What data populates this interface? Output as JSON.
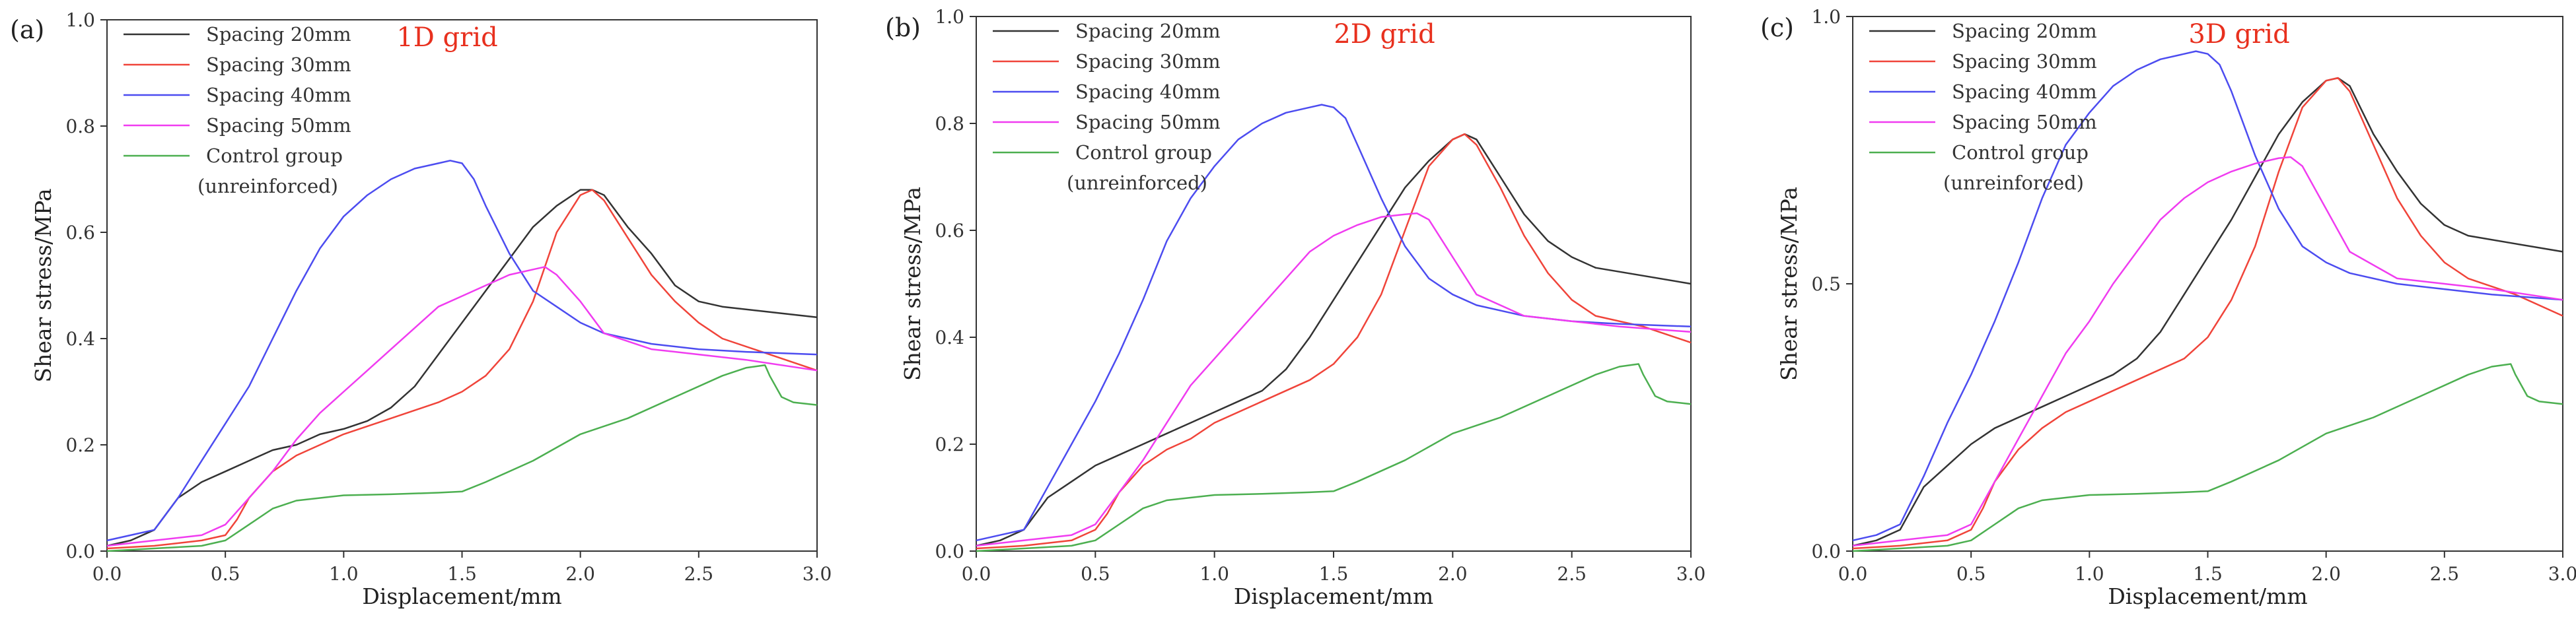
{
  "figure": {
    "colors": {
      "axis": "#333333",
      "title": "#e8301e"
    }
  },
  "chart_data": [
    {
      "type": "line",
      "panel_label": "(a)",
      "title": "1D grid",
      "xlabel": "Displacement/mm",
      "ylabel": "Shear stress/MPa",
      "xlim": [
        0,
        3.0
      ],
      "ylim": [
        0,
        1.0
      ],
      "xticks": [
        0,
        0.5,
        1.0,
        1.5,
        2.0,
        2.5,
        3.0
      ],
      "xtick_labels": [
        "0.0",
        "0.5",
        "1.0",
        "1.5",
        "2.0",
        "2.5",
        "3.0"
      ],
      "yticks": [
        0,
        0.2,
        0.4,
        0.6,
        0.8,
        1.0
      ],
      "ytick_labels": [
        "0.0",
        "0.2",
        "0.4",
        "0.6",
        "0.8",
        "1.0"
      ],
      "legend_position": "top-left",
      "series": [
        {
          "name": "Spacing 20mm",
          "color": "#333333",
          "x": [
            0,
            0.1,
            0.2,
            0.25,
            0.3,
            0.4,
            0.5,
            0.6,
            0.7,
            0.8,
            0.9,
            1.0,
            1.1,
            1.2,
            1.3,
            1.4,
            1.5,
            1.6,
            1.7,
            1.8,
            1.9,
            2.0,
            2.05,
            2.1,
            2.2,
            2.3,
            2.4,
            2.5,
            2.6,
            2.8,
            3.0
          ],
          "y": [
            0.01,
            0.02,
            0.04,
            0.07,
            0.1,
            0.13,
            0.15,
            0.17,
            0.19,
            0.2,
            0.22,
            0.23,
            0.245,
            0.27,
            0.31,
            0.37,
            0.43,
            0.49,
            0.55,
            0.61,
            0.65,
            0.68,
            0.68,
            0.67,
            0.61,
            0.56,
            0.5,
            0.47,
            0.46,
            0.45,
            0.44
          ]
        },
        {
          "name": "Spacing 30mm",
          "color": "#f0443a",
          "x": [
            0,
            0.2,
            0.4,
            0.5,
            0.55,
            0.6,
            0.7,
            0.8,
            0.9,
            1.0,
            1.2,
            1.4,
            1.5,
            1.6,
            1.7,
            1.8,
            1.9,
            2.0,
            2.05,
            2.1,
            2.2,
            2.3,
            2.4,
            2.5,
            2.6,
            2.8,
            3.0
          ],
          "y": [
            0.005,
            0.01,
            0.02,
            0.03,
            0.06,
            0.1,
            0.15,
            0.18,
            0.2,
            0.22,
            0.25,
            0.28,
            0.3,
            0.33,
            0.38,
            0.47,
            0.6,
            0.67,
            0.68,
            0.66,
            0.59,
            0.52,
            0.47,
            0.43,
            0.4,
            0.37,
            0.34
          ]
        },
        {
          "name": "Spacing 40mm",
          "color": "#4c4cf0",
          "x": [
            0,
            0.1,
            0.2,
            0.3,
            0.4,
            0.5,
            0.6,
            0.7,
            0.8,
            0.9,
            1.0,
            1.1,
            1.2,
            1.3,
            1.4,
            1.45,
            1.5,
            1.55,
            1.6,
            1.7,
            1.8,
            1.9,
            2.0,
            2.1,
            2.3,
            2.5,
            2.7,
            3.0
          ],
          "y": [
            0.02,
            0.03,
            0.04,
            0.1,
            0.17,
            0.24,
            0.31,
            0.4,
            0.49,
            0.57,
            0.63,
            0.67,
            0.7,
            0.72,
            0.73,
            0.735,
            0.73,
            0.7,
            0.65,
            0.56,
            0.49,
            0.46,
            0.43,
            0.41,
            0.39,
            0.38,
            0.375,
            0.37
          ]
        },
        {
          "name": "Spacing 50mm",
          "color": "#f03cf0",
          "x": [
            0,
            0.2,
            0.4,
            0.5,
            0.6,
            0.7,
            0.8,
            0.9,
            1.0,
            1.1,
            1.2,
            1.3,
            1.4,
            1.5,
            1.6,
            1.7,
            1.8,
            1.85,
            1.9,
            2.0,
            2.1,
            2.3,
            2.5,
            2.7,
            3.0
          ],
          "y": [
            0.01,
            0.02,
            0.03,
            0.05,
            0.1,
            0.15,
            0.21,
            0.26,
            0.3,
            0.34,
            0.38,
            0.42,
            0.46,
            0.48,
            0.5,
            0.52,
            0.53,
            0.535,
            0.52,
            0.47,
            0.41,
            0.38,
            0.37,
            0.36,
            0.34
          ]
        },
        {
          "name": "Control group (unreinforced)",
          "color": "#4caf50",
          "x": [
            0,
            0.2,
            0.4,
            0.5,
            0.6,
            0.7,
            0.8,
            0.9,
            1.0,
            1.2,
            1.4,
            1.5,
            1.6,
            1.8,
            2.0,
            2.2,
            2.4,
            2.6,
            2.7,
            2.78,
            2.8,
            2.85,
            2.9,
            3.0
          ],
          "y": [
            0.0,
            0.005,
            0.01,
            0.02,
            0.05,
            0.08,
            0.095,
            0.1,
            0.105,
            0.107,
            0.11,
            0.112,
            0.13,
            0.17,
            0.22,
            0.25,
            0.29,
            0.33,
            0.345,
            0.35,
            0.33,
            0.29,
            0.28,
            0.275
          ]
        }
      ]
    },
    {
      "type": "line",
      "panel_label": "(b)",
      "title": "2D grid",
      "xlabel": "Displacement/mm",
      "ylabel": "Shear stress/MPa",
      "xlim": [
        0,
        3.0
      ],
      "ylim": [
        0,
        1.0
      ],
      "xticks": [
        0,
        0.5,
        1.0,
        1.5,
        2.0,
        2.5,
        3.0
      ],
      "xtick_labels": [
        "0.0",
        "0.5",
        "1.0",
        "1.5",
        "2.0",
        "2.5",
        "3.0"
      ],
      "yticks": [
        0,
        0.2,
        0.4,
        0.6,
        0.8,
        1.0
      ],
      "ytick_labels": [
        "0.0",
        "0.2",
        "0.4",
        "0.6",
        "0.8",
        "1.0"
      ],
      "legend_position": "top-left",
      "series": [
        {
          "name": "Spacing 20mm",
          "color": "#333333",
          "x": [
            0,
            0.1,
            0.2,
            0.25,
            0.3,
            0.4,
            0.5,
            0.6,
            0.7,
            0.8,
            0.9,
            1.0,
            1.1,
            1.2,
            1.3,
            1.4,
            1.5,
            1.6,
            1.7,
            1.8,
            1.9,
            2.0,
            2.05,
            2.1,
            2.2,
            2.3,
            2.4,
            2.5,
            2.6,
            2.8,
            3.0
          ],
          "y": [
            0.01,
            0.02,
            0.04,
            0.07,
            0.1,
            0.13,
            0.16,
            0.18,
            0.2,
            0.22,
            0.24,
            0.26,
            0.28,
            0.3,
            0.34,
            0.4,
            0.47,
            0.54,
            0.61,
            0.68,
            0.73,
            0.77,
            0.78,
            0.77,
            0.7,
            0.63,
            0.58,
            0.55,
            0.53,
            0.515,
            0.5
          ]
        },
        {
          "name": "Spacing 30mm",
          "color": "#f0443a",
          "x": [
            0,
            0.2,
            0.4,
            0.5,
            0.55,
            0.6,
            0.7,
            0.8,
            0.9,
            1.0,
            1.2,
            1.4,
            1.5,
            1.6,
            1.7,
            1.8,
            1.9,
            2.0,
            2.05,
            2.1,
            2.2,
            2.3,
            2.4,
            2.5,
            2.6,
            2.8,
            3.0
          ],
          "y": [
            0.005,
            0.01,
            0.02,
            0.04,
            0.07,
            0.11,
            0.16,
            0.19,
            0.21,
            0.24,
            0.28,
            0.32,
            0.35,
            0.4,
            0.48,
            0.6,
            0.72,
            0.77,
            0.78,
            0.76,
            0.68,
            0.59,
            0.52,
            0.47,
            0.44,
            0.42,
            0.39
          ]
        },
        {
          "name": "Spacing 40mm",
          "color": "#4c4cf0",
          "x": [
            0,
            0.1,
            0.2,
            0.3,
            0.4,
            0.5,
            0.6,
            0.7,
            0.8,
            0.9,
            1.0,
            1.1,
            1.2,
            1.3,
            1.4,
            1.45,
            1.5,
            1.55,
            1.6,
            1.7,
            1.8,
            1.9,
            2.0,
            2.1,
            2.3,
            2.5,
            2.7,
            3.0
          ],
          "y": [
            0.02,
            0.03,
            0.04,
            0.12,
            0.2,
            0.28,
            0.37,
            0.47,
            0.58,
            0.66,
            0.72,
            0.77,
            0.8,
            0.82,
            0.83,
            0.835,
            0.83,
            0.81,
            0.76,
            0.66,
            0.57,
            0.51,
            0.48,
            0.46,
            0.44,
            0.43,
            0.425,
            0.42
          ]
        },
        {
          "name": "Spacing 50mm",
          "color": "#f03cf0",
          "x": [
            0,
            0.2,
            0.4,
            0.5,
            0.6,
            0.7,
            0.8,
            0.9,
            1.0,
            1.1,
            1.2,
            1.3,
            1.4,
            1.5,
            1.6,
            1.7,
            1.8,
            1.85,
            1.9,
            2.0,
            2.1,
            2.3,
            2.5,
            2.7,
            3.0
          ],
          "y": [
            0.01,
            0.02,
            0.03,
            0.05,
            0.11,
            0.17,
            0.24,
            0.31,
            0.36,
            0.41,
            0.46,
            0.51,
            0.56,
            0.59,
            0.61,
            0.625,
            0.63,
            0.632,
            0.62,
            0.55,
            0.48,
            0.44,
            0.43,
            0.42,
            0.41
          ]
        },
        {
          "name": "Control group (unreinforced)",
          "color": "#4caf50",
          "x": [
            0,
            0.2,
            0.4,
            0.5,
            0.6,
            0.7,
            0.8,
            0.9,
            1.0,
            1.2,
            1.4,
            1.5,
            1.6,
            1.8,
            2.0,
            2.2,
            2.4,
            2.6,
            2.7,
            2.78,
            2.8,
            2.85,
            2.9,
            3.0
          ],
          "y": [
            0.0,
            0.005,
            0.01,
            0.02,
            0.05,
            0.08,
            0.095,
            0.1,
            0.105,
            0.107,
            0.11,
            0.112,
            0.13,
            0.17,
            0.22,
            0.25,
            0.29,
            0.33,
            0.345,
            0.35,
            0.33,
            0.29,
            0.28,
            0.275
          ]
        }
      ]
    },
    {
      "type": "line",
      "panel_label": "(c)",
      "title": "3D grid",
      "xlabel": "Displacement/mm",
      "ylabel": "Shear stress/MPa",
      "xlim": [
        0,
        3.0
      ],
      "ylim": [
        0,
        1.0
      ],
      "xticks": [
        0,
        0.5,
        1.0,
        1.5,
        2.0,
        2.5,
        3.0
      ],
      "xtick_labels": [
        "0.0",
        "0.5",
        "1.0",
        "1.5",
        "2.0",
        "2.5",
        "3.0"
      ],
      "yticks": [
        0,
        0.5,
        1.0
      ],
      "ytick_labels": [
        "0.0",
        "0.5",
        "1.0"
      ],
      "legend_position": "top-left",
      "series": [
        {
          "name": "Spacing 20mm",
          "color": "#333333",
          "x": [
            0,
            0.1,
            0.2,
            0.25,
            0.3,
            0.4,
            0.5,
            0.6,
            0.7,
            0.8,
            0.9,
            1.0,
            1.1,
            1.2,
            1.3,
            1.4,
            1.5,
            1.6,
            1.7,
            1.8,
            1.9,
            2.0,
            2.05,
            2.1,
            2.2,
            2.3,
            2.4,
            2.5,
            2.6,
            2.8,
            3.0
          ],
          "y": [
            0.01,
            0.02,
            0.04,
            0.08,
            0.12,
            0.16,
            0.2,
            0.23,
            0.25,
            0.27,
            0.29,
            0.31,
            0.33,
            0.36,
            0.41,
            0.48,
            0.55,
            0.62,
            0.7,
            0.78,
            0.84,
            0.88,
            0.885,
            0.87,
            0.78,
            0.71,
            0.65,
            0.61,
            0.59,
            0.575,
            0.56
          ]
        },
        {
          "name": "Spacing 30mm",
          "color": "#f0443a",
          "x": [
            0,
            0.2,
            0.4,
            0.5,
            0.55,
            0.6,
            0.7,
            0.8,
            0.9,
            1.0,
            1.2,
            1.4,
            1.5,
            1.6,
            1.7,
            1.8,
            1.9,
            2.0,
            2.05,
            2.1,
            2.2,
            2.3,
            2.4,
            2.5,
            2.6,
            2.8,
            3.0
          ],
          "y": [
            0.005,
            0.01,
            0.02,
            0.04,
            0.08,
            0.13,
            0.19,
            0.23,
            0.26,
            0.28,
            0.32,
            0.36,
            0.4,
            0.47,
            0.57,
            0.71,
            0.83,
            0.88,
            0.885,
            0.86,
            0.76,
            0.66,
            0.59,
            0.54,
            0.51,
            0.48,
            0.44
          ]
        },
        {
          "name": "Spacing 40mm",
          "color": "#4c4cf0",
          "x": [
            0,
            0.1,
            0.2,
            0.3,
            0.4,
            0.5,
            0.6,
            0.7,
            0.8,
            0.9,
            1.0,
            1.1,
            1.2,
            1.3,
            1.4,
            1.45,
            1.5,
            1.55,
            1.6,
            1.7,
            1.8,
            1.9,
            2.0,
            2.1,
            2.3,
            2.5,
            2.7,
            3.0
          ],
          "y": [
            0.02,
            0.03,
            0.05,
            0.14,
            0.24,
            0.33,
            0.43,
            0.54,
            0.66,
            0.76,
            0.82,
            0.87,
            0.9,
            0.92,
            0.93,
            0.935,
            0.93,
            0.91,
            0.86,
            0.74,
            0.64,
            0.57,
            0.54,
            0.52,
            0.5,
            0.49,
            0.48,
            0.47
          ]
        },
        {
          "name": "Spacing 50mm",
          "color": "#f03cf0",
          "x": [
            0,
            0.2,
            0.4,
            0.5,
            0.6,
            0.7,
            0.8,
            0.9,
            1.0,
            1.1,
            1.2,
            1.3,
            1.4,
            1.5,
            1.6,
            1.7,
            1.8,
            1.85,
            1.9,
            2.0,
            2.1,
            2.3,
            2.5,
            2.7,
            3.0
          ],
          "y": [
            0.01,
            0.02,
            0.03,
            0.05,
            0.13,
            0.21,
            0.29,
            0.37,
            0.43,
            0.5,
            0.56,
            0.62,
            0.66,
            0.69,
            0.71,
            0.725,
            0.735,
            0.737,
            0.72,
            0.64,
            0.56,
            0.51,
            0.5,
            0.49,
            0.47
          ]
        },
        {
          "name": "Control group (unreinforced)",
          "color": "#4caf50",
          "x": [
            0,
            0.2,
            0.4,
            0.5,
            0.6,
            0.7,
            0.8,
            0.9,
            1.0,
            1.2,
            1.4,
            1.5,
            1.6,
            1.8,
            2.0,
            2.2,
            2.4,
            2.6,
            2.7,
            2.78,
            2.8,
            2.85,
            2.9,
            3.0
          ],
          "y": [
            0.0,
            0.005,
            0.01,
            0.02,
            0.05,
            0.08,
            0.095,
            0.1,
            0.105,
            0.107,
            0.11,
            0.112,
            0.13,
            0.17,
            0.22,
            0.25,
            0.29,
            0.33,
            0.345,
            0.35,
            0.33,
            0.29,
            0.28,
            0.275
          ]
        }
      ]
    }
  ]
}
